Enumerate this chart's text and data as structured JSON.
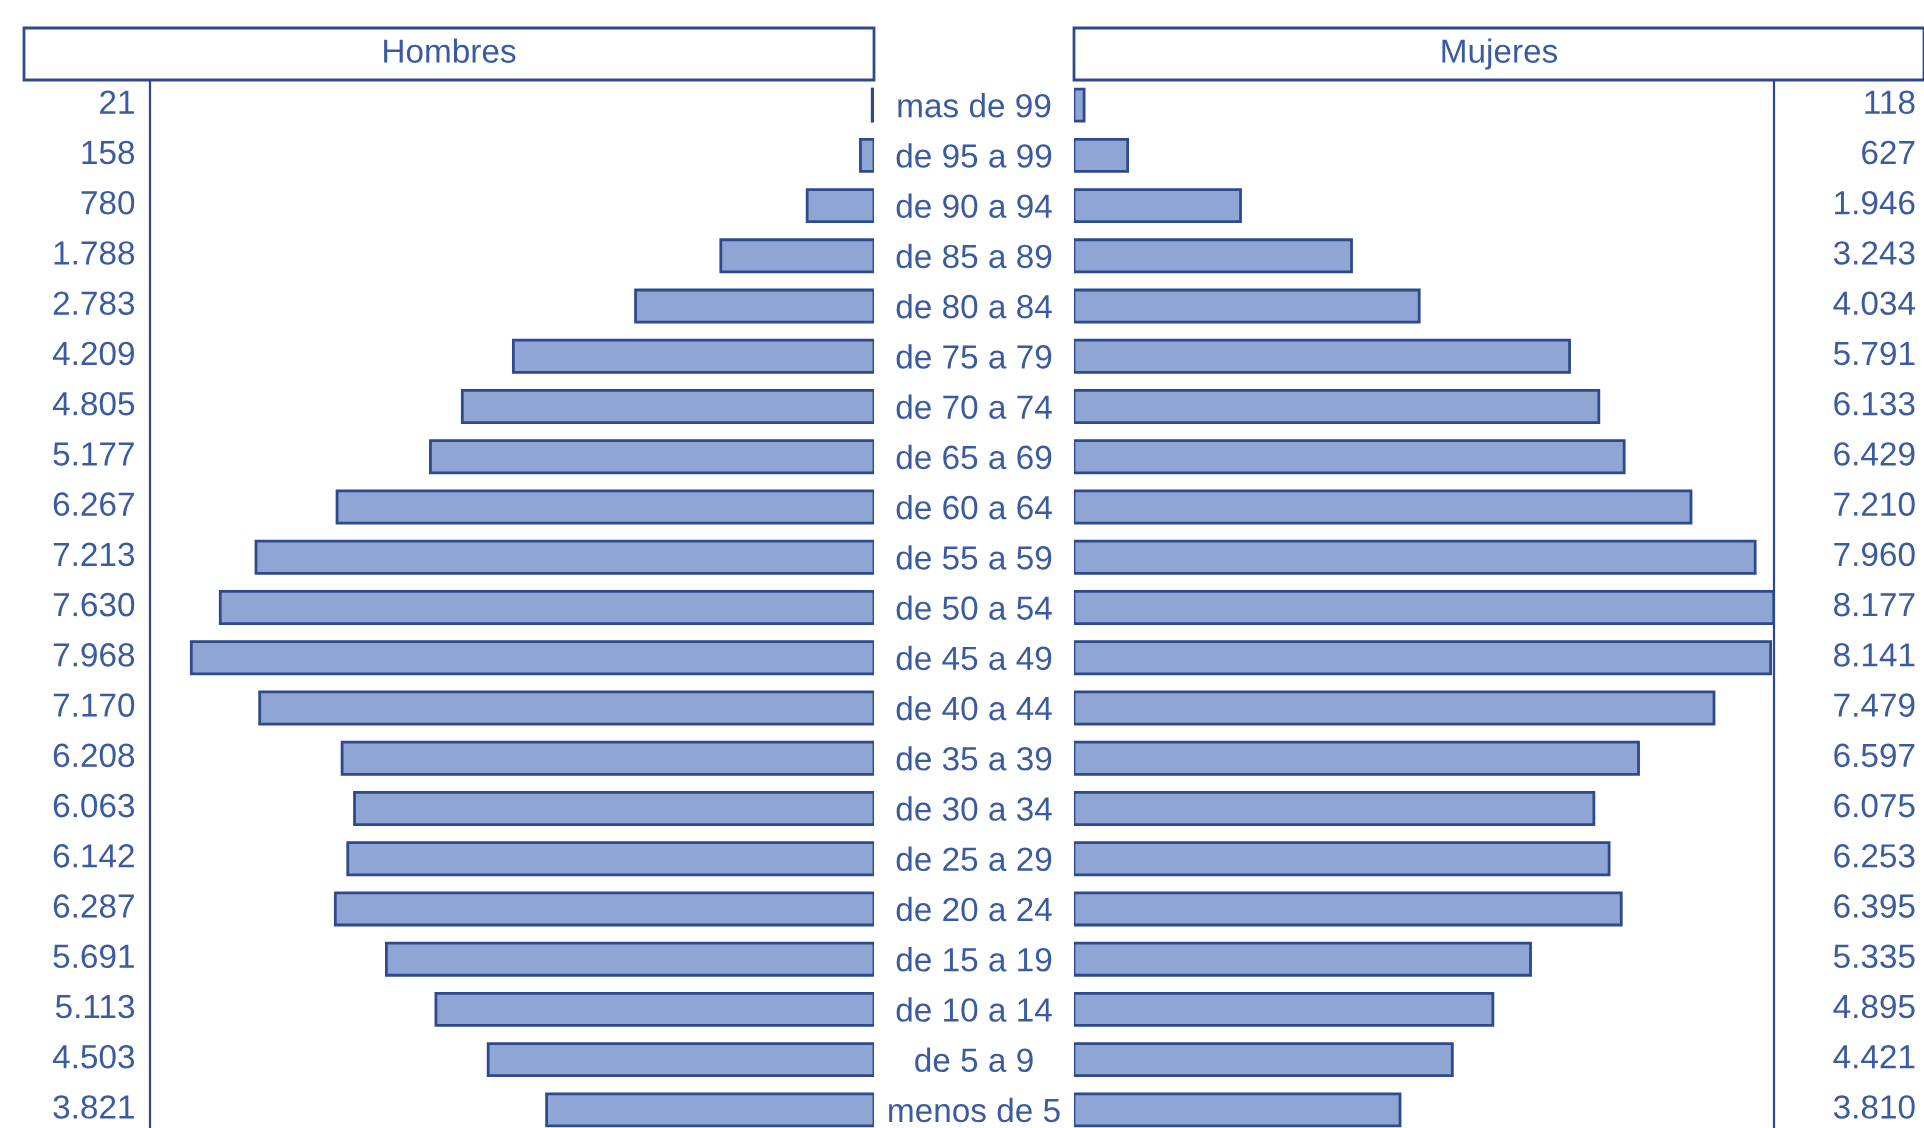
{
  "chart_data": [
    {
      "type": "bar",
      "orientation": "horizontal",
      "title": "Hombres",
      "color": "#8fa5d3",
      "xlim": [
        8450,
        0
      ],
      "tick_labels": "y",
      "categories": [
        "mas de 99",
        "de 95 a 99",
        "de 90 a 94",
        "de 85 a 89",
        "de 80 a 84",
        "de 75 a 79",
        "de 70 a 74",
        "de 65 a 69",
        "de 60 a 64",
        "de 55 a 59",
        "de 50 a 54",
        "de 45 a 49",
        "de 40 a 44",
        "de 35 a 39",
        "de 30 a 34",
        "de 25 a 29",
        "de 20 a 24",
        "de 15 a 19",
        "de 10 a 14",
        "de 5 a 9",
        "menos de 5"
      ],
      "values": [
        21,
        158,
        780,
        1788,
        2783,
        4209,
        4805,
        5177,
        6267,
        7213,
        7630,
        7968,
        7170,
        6208,
        6063,
        6142,
        6287,
        5691,
        5113,
        4503,
        3821
      ],
      "value_labels": [
        "21",
        "158",
        "780",
        "1.788",
        "2.783",
        "4.209",
        "4.805",
        "5.177",
        "6.267",
        "7.213",
        "7.630",
        "7.968",
        "7.170",
        "6.208",
        "6.063",
        "6.142",
        "6.287",
        "5.691",
        "5.113",
        "4.503",
        "3.821"
      ]
    },
    {
      "type": "bar",
      "orientation": "horizontal",
      "title": "Mujeres",
      "color": "#8fa5d3",
      "xlim": [
        0,
        8180
      ],
      "tick_labels": false,
      "values": [
        118,
        627,
        1946,
        3243,
        4034,
        5791,
        6133,
        6429,
        7210,
        7960,
        8177,
        8141,
        7479,
        6597,
        6075,
        6253,
        6395,
        5335,
        4895,
        4421,
        3810
      ],
      "value_labels": [
        "118",
        "627",
        "1.946",
        "3.243",
        "4.034",
        "5.791",
        "6.133",
        "6.429",
        "7.210",
        "7.960",
        "8.177",
        "8.141",
        "7.479",
        "6.597",
        "6.075",
        "6.253",
        "6.395",
        "5.335",
        "4.895",
        "4.421",
        "3.810"
      ]
    }
  ]
}
